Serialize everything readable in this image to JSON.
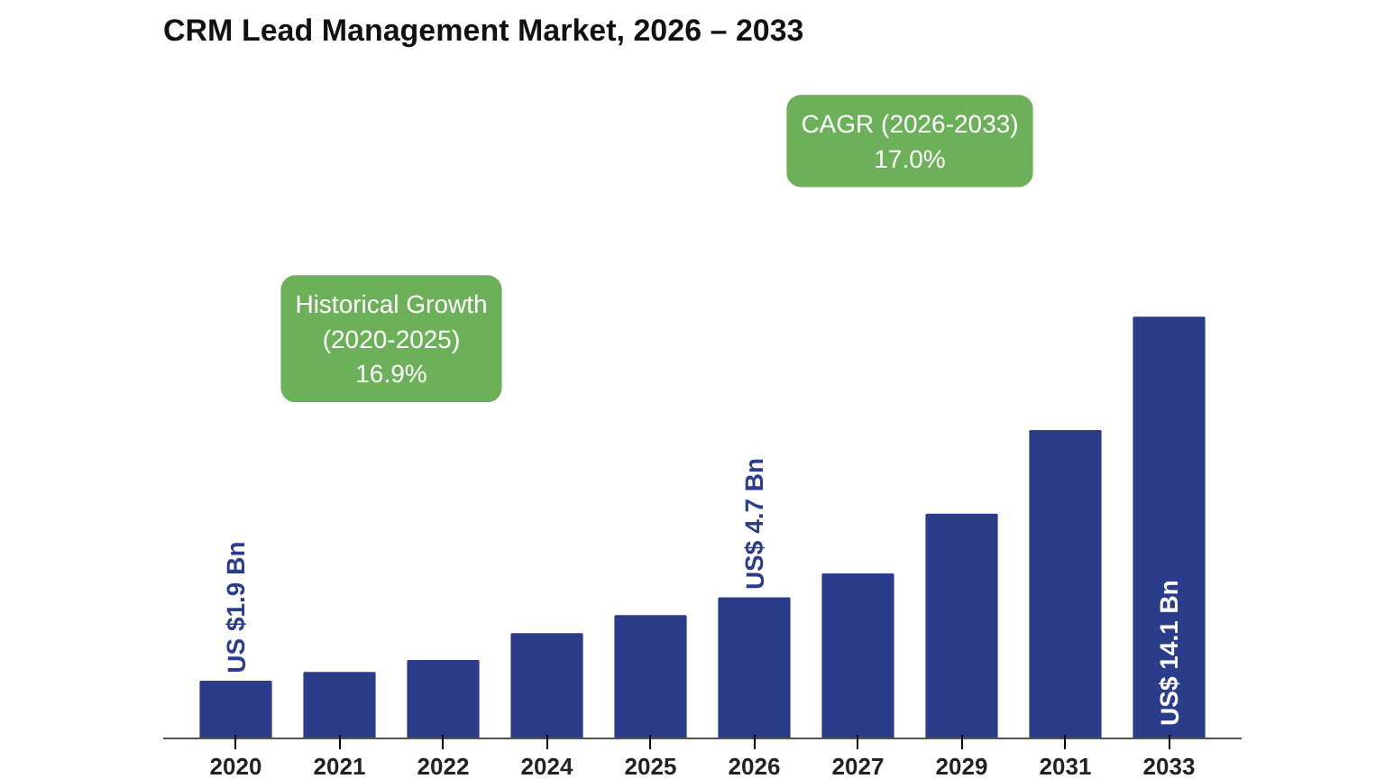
{
  "chart_data": {
    "type": "bar",
    "title": "CRM Lead Management Market, 2026 – 2033",
    "categories": [
      "2020",
      "2021",
      "2022",
      "2024",
      "2025",
      "2026",
      "2027",
      "2029",
      "2031",
      "2033"
    ],
    "values": [
      1.9,
      2.2,
      2.6,
      3.5,
      4.1,
      4.7,
      5.5,
      7.5,
      10.3,
      14.1
    ],
    "color": "#2b3d8a",
    "value_labels": [
      "US $1.9 Bn",
      null,
      null,
      null,
      null,
      "US$ 4.7 Bn",
      null,
      null,
      null,
      "US$ 14.1 Bn"
    ],
    "annotations": [
      "Historical Growth\n(2020-2025)\n16.9%",
      "CAGR (2026-2033)\n17.0%"
    ],
    "grid": false
  }
}
